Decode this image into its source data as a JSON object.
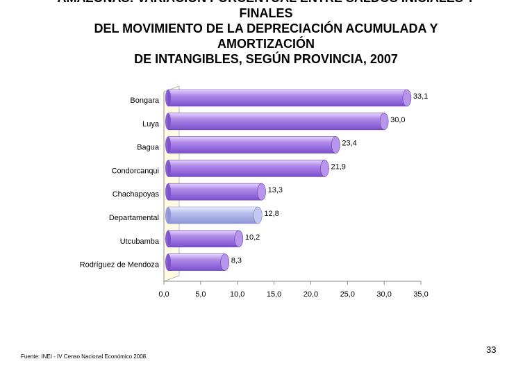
{
  "title_lines": [
    "AMAZONAS: VARIACIÓN PORCENTUAL ENTRE SALDOS INICIALES Y",
    "FINALES",
    "DEL MOVIMIENTO DE LA DEPRECIACIÓN ACUMULADA Y",
    "AMORTIZACIÓN",
    "DE INTANGIBLES, SEGÚN PROVINCIA, 2007"
  ],
  "source": "Fuente: INEI - IV Censo Nacional Económico 2008.",
  "page_number": "33",
  "colors": {
    "bar_main": "#9b6fe0",
    "bar_highlight": "#a9b1e6",
    "wall": "#fffbe3"
  },
  "chart_data": {
    "type": "bar",
    "orientation": "horizontal",
    "categories": [
      "Bongara",
      "Luya",
      "Bagua",
      "Condorcanqui",
      "Chachapoyas",
      "Departamental",
      "Utcubamba",
      "Rodríguez de Mendoza"
    ],
    "values": [
      33.1,
      30.0,
      23.4,
      21.9,
      13.3,
      12.8,
      10.2,
      8.3
    ],
    "value_labels": [
      "33,1",
      "30,0",
      "23,4",
      "21,9",
      "13,3",
      "12,8",
      "10,2",
      "8,3"
    ],
    "highlight_category": "Departamental",
    "xlim": [
      0,
      35
    ],
    "x_ticks": [
      "0,0",
      "5,0",
      "10,0",
      "15,0",
      "20,0",
      "25,0",
      "30,0",
      "35,0"
    ],
    "grid": false,
    "legend": "none"
  }
}
